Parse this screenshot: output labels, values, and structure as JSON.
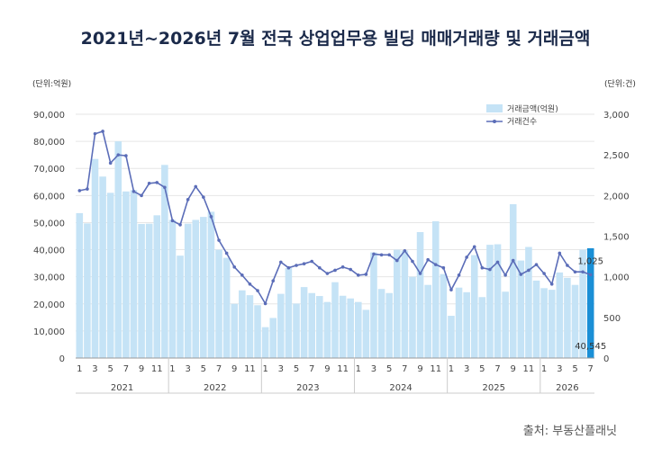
{
  "title": "2021년~2026년 7월 전국 상업업무용 빌딩 매매거래량 및 거래금액",
  "units": {
    "left": "(단위:억원)",
    "right": "(단위:건)"
  },
  "source": "출처: 부동산플래닛",
  "colors": {
    "bar": "#c5e3f6",
    "bar_highlight": "#1a8fd6",
    "line": "#5b6db8",
    "grid": "#e6e6e6"
  },
  "chart_data": {
    "type": "bar",
    "title": "2021년~2026년 7월 전국 상업업무용 빌딩 매매거래량 및 거래금액",
    "legend_position": "top-right",
    "grid": true,
    "years": [
      "2021",
      "2022",
      "2023",
      "2024",
      "2025",
      "2026"
    ],
    "month_tick_labels": [
      "1",
      "3",
      "5",
      "7",
      "9",
      "11",
      "1",
      "3",
      "5",
      "7",
      "9",
      "11",
      "1",
      "3",
      "5",
      "7",
      "9",
      "11",
      "1",
      "3",
      "5",
      "7",
      "9",
      "11",
      "1",
      "3",
      "5",
      "7",
      "9",
      "11",
      "1",
      "3",
      "5",
      "7"
    ],
    "y_left": {
      "ticks": [
        "0",
        "10,000",
        "20,000",
        "30,000",
        "40,000",
        "50,000",
        "60,000",
        "70,000",
        "80,000",
        "90,000"
      ],
      "lim": [
        0,
        90000
      ]
    },
    "y_right": {
      "ticks": [
        "0",
        "500",
        "1,000",
        "1,500",
        "2,000",
        "2,500",
        "3,000"
      ],
      "lim": [
        0,
        3000
      ]
    },
    "series": [
      {
        "name": "거래금액(억원)",
        "kind": "bar",
        "axis": "left",
        "values": [
          53500,
          49700,
          73500,
          67000,
          61000,
          80000,
          61500,
          62000,
          49500,
          49600,
          52700,
          71300,
          51000,
          37800,
          49600,
          51000,
          52100,
          54000,
          40000,
          37000,
          20000,
          25000,
          23200,
          19500,
          11400,
          14800,
          23700,
          33200,
          20100,
          26200,
          24000,
          22900,
          20700,
          28000,
          23000,
          22000,
          20700,
          17800,
          39000,
          25500,
          24000,
          40000,
          39700,
          30000,
          46500,
          27000,
          50500,
          31000,
          15600,
          26000,
          24300,
          38000,
          22500,
          41800,
          42000,
          24500,
          56800,
          36000,
          41000,
          28600,
          25800,
          25200,
          31600,
          29600,
          27000,
          40000,
          40545
        ],
        "labels": {
          "66": "40,545"
        }
      },
      {
        "name": "거래건수",
        "kind": "line",
        "axis": "right",
        "values": [
          2060,
          2080,
          2760,
          2790,
          2400,
          2500,
          2490,
          2050,
          2000,
          2150,
          2160,
          2100,
          1690,
          1640,
          1950,
          2110,
          1980,
          1740,
          1450,
          1290,
          1120,
          1020,
          910,
          830,
          670,
          950,
          1180,
          1110,
          1140,
          1160,
          1190,
          1110,
          1040,
          1080,
          1120,
          1090,
          1020,
          1030,
          1280,
          1270,
          1270,
          1200,
          1320,
          1190,
          1040,
          1210,
          1150,
          1110,
          840,
          1020,
          1240,
          1370,
          1110,
          1090,
          1180,
          1020,
          1200,
          1030,
          1080,
          1150,
          1040,
          910,
          1290,
          1140,
          1060,
          1060,
          1025
        ],
        "labels": {
          "66": "1,025"
        }
      }
    ]
  }
}
